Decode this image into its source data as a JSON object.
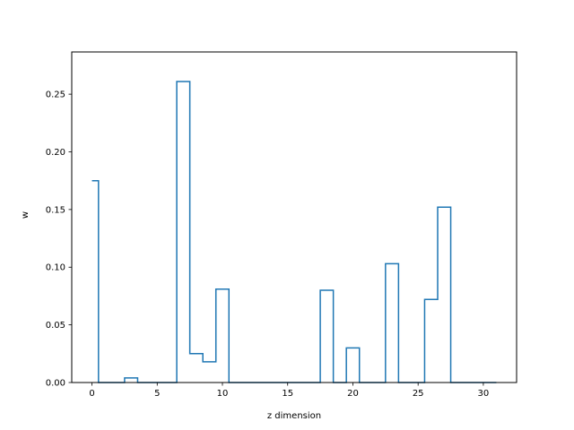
{
  "chart_data": {
    "type": "line",
    "drawstyle": "steps-mid",
    "title": "",
    "xlabel": "z dimension",
    "ylabel": "w",
    "xlim": [
      -1.55,
      32.55
    ],
    "ylim": [
      0,
      0.2866
    ],
    "x_ticks": [
      0,
      5,
      10,
      15,
      20,
      25,
      30
    ],
    "y_ticks": [
      0.0,
      0.05,
      0.1,
      0.15,
      0.2,
      0.25
    ],
    "x_tick_labels": [
      "0",
      "5",
      "10",
      "15",
      "20",
      "25",
      "30"
    ],
    "y_tick_labels": [
      "0.00",
      "0.05",
      "0.10",
      "0.15",
      "0.20",
      "0.25"
    ],
    "grid": false,
    "line_color": "#1f77b4",
    "x": [
      0,
      1,
      2,
      3,
      4,
      5,
      6,
      7,
      8,
      9,
      10,
      11,
      12,
      13,
      14,
      15,
      16,
      17,
      18,
      19,
      20,
      21,
      22,
      23,
      24,
      25,
      26,
      27,
      28,
      29,
      30,
      31
    ],
    "values": [
      0.175,
      0,
      0,
      0.004,
      0,
      0,
      0,
      0.261,
      0.025,
      0.018,
      0.081,
      0,
      0,
      0,
      0,
      0,
      0,
      0,
      0.08,
      0,
      0.03,
      0,
      0,
      0.103,
      0,
      0,
      0.072,
      0.152,
      0,
      0,
      0,
      0
    ]
  }
}
